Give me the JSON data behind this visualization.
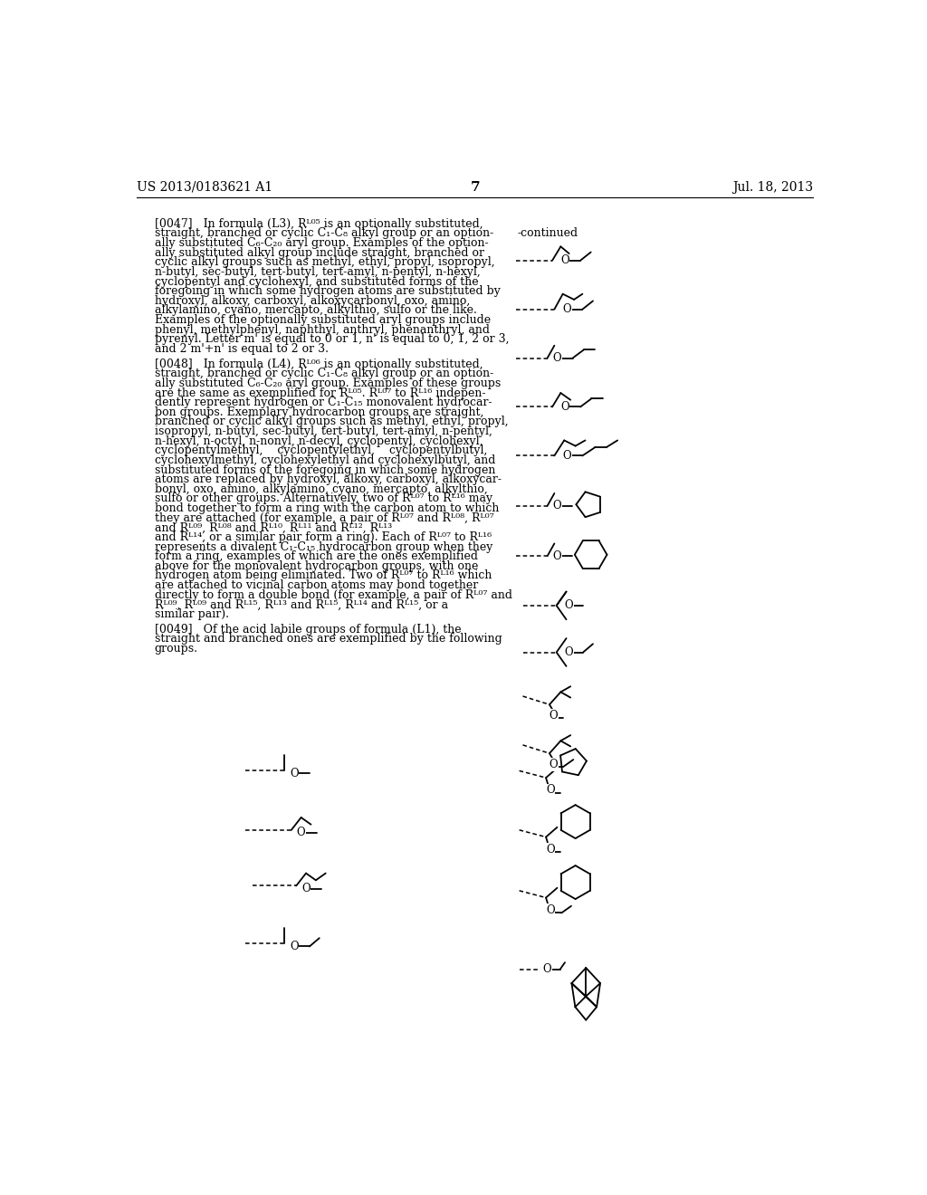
{
  "page_number": "7",
  "patent_number": "US 2013/0183621 A1",
  "date": "Jul. 18, 2013",
  "background_color": "#ffffff",
  "p47_lines": [
    "[0047]   In formula (L3), Rᴸ⁰⁵ is an optionally substituted,",
    "straight, branched or cyclic C₁-C₈ alkyl group or an option-",
    "ally substituted C₆-C₂₀ aryl group. Examples of the option-",
    "ally substituted alkyl group include straight, branched or",
    "cyclic alkyl groups such as methyl, ethyl, propyl, isopropyl,",
    "n-butyl, sec-butyl, tert-butyl, tert-amyl, n-pentyl, n-hexyl,",
    "cyclopentyl and cyclohexyl, and substituted forms of the",
    "foregoing in which some hydrogen atoms are substituted by",
    "hydroxyl, alkoxy, carboxyl, alkoxycarbonyl, oxo, amino,",
    "alkylamino, cyano, mercapto, alkylthio, sulfo or the like.",
    "Examples of the optionally substituted aryl groups include",
    "phenyl, methylphenyl, naphthyl, anthryl, phenanthryl, and",
    "pyrenyl. Letter m' is equal to 0 or 1, n' is equal to 0, 1, 2 or 3,",
    "and 2 m'+n' is equal to 2 or 3."
  ],
  "p48_lines": [
    "[0048]   In formula (L4), Rᴸ⁰⁶ is an optionally substituted,",
    "straight, branched or cyclic C₁-C₈ alkyl group or an option-",
    "ally substituted C₆-C₂₀ aryl group. Examples of these groups",
    "are the same as exemplified for Rᴸ⁰⁵. Rᴸ⁰⁷ to Rᴸ¹⁶ indepen-",
    "dently represent hydrogen or C₁-C₁₅ monovalent hydrocar-",
    "bon groups. Exemplary hydrocarbon groups are straight,",
    "branched or cyclic alkyl groups such as methyl, ethyl, propyl,",
    "isopropyl, n-butyl, sec-butyl, tert-butyl, tert-amyl, n-pentyl,",
    "n-hexyl, n-octyl, n-nonyl, n-decyl, cyclopentyl, cyclohexyl,",
    "cyclopentylmethyl,    cyclopentylethyl,    cyclopentylbutyl,",
    "cyclohexylmethyl, cyclohexylethyl and cyclohexylbutyl, and",
    "substituted forms of the foregoing in which some hydrogen",
    "atoms are replaced by hydroxyl, alkoxy, carboxyl, alkoxycar-",
    "bonyl, oxo, amino, alkylamino, cyano, mercapto, alkylthio,",
    "sulfo or other groups. Alternatively, two of Rᴸ⁰⁷ to Rᴸ¹⁶ may",
    "bond together to form a ring with the carbon atom to which",
    "they are attached (for example, a pair of Rᴸ⁰⁷ and Rᴸ⁰⁸, Rᴸ⁰⁷",
    "and Rᴸ⁰⁹, Rᴸ⁰⁸ and Rᴸ¹⁰, Rᴸ¹¹ and Rᴸ¹², Rᴸ¹³",
    "and Rᴸ¹⁴, or a similar pair form a ring). Each of Rᴸ⁰⁷ to Rᴸ¹⁶",
    "represents a divalent C₁-C₁₅ hydrocarbon group when they",
    "form a ring, examples of which are the ones exemplified",
    "above for the monovalent hydrocarbon groups, with one",
    "hydrogen atom being eliminated. Two of Rᴸ⁰⁷ to Rᴸ¹⁶ which",
    "are attached to vicinal carbon atoms may bond together",
    "directly to form a double bond (for example, a pair of Rᴸ⁰⁷ and",
    "Rᴸ⁰⁹, Rᴸ⁰⁹ and Rᴸ¹⁵, Rᴸ¹³ and Rᴸ¹⁵, Rᴸ¹⁴ and Rᴸ¹⁵, or a",
    "similar pair)."
  ],
  "p49_lines": [
    "[0049]   Of the acid labile groups of formula (L1), the",
    "straight and branched ones are exemplified by the following",
    "groups."
  ]
}
